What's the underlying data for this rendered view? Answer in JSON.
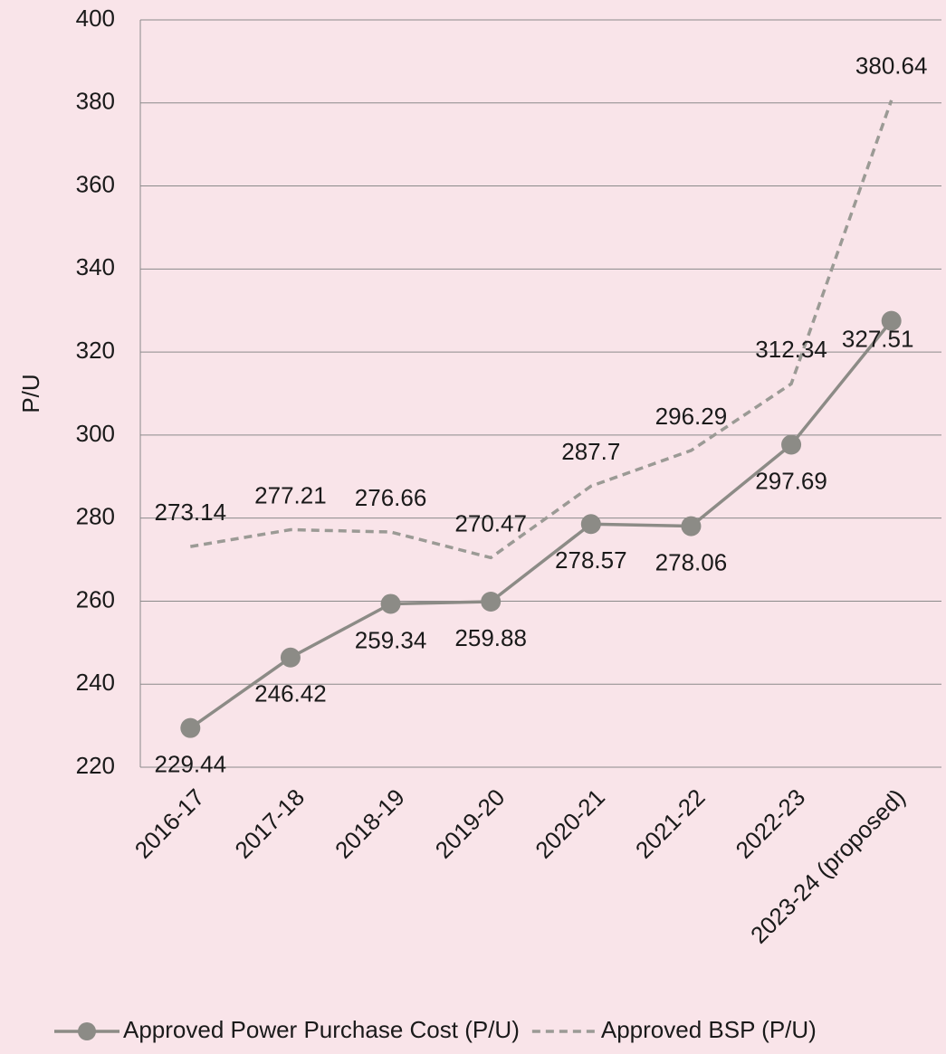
{
  "chart_data": {
    "type": "line",
    "y_label": "P/U",
    "categories": [
      "2016-17",
      "2017-18",
      "2018-19",
      "2019-20",
      "2020-21",
      "2021-22",
      "2022-23",
      "2023-24 (proposed)"
    ],
    "series": [
      {
        "name": "Approved Power Purchase Cost (P/U)",
        "color": "#8c8b86",
        "line_style": "solid",
        "marker": "circle",
        "values": [
          229.44,
          246.42,
          259.34,
          259.88,
          278.57,
          278.06,
          297.69,
          327.51
        ]
      },
      {
        "name": "Approved BSP (P/U)",
        "color": "#9b9a95",
        "line_style": "dashed",
        "marker": "none",
        "values": [
          273.14,
          277.21,
          276.66,
          270.47,
          287.7,
          296.29,
          312.34,
          380.64
        ]
      }
    ],
    "ylim": [
      220,
      400
    ],
    "yticks": [
      220,
      240,
      260,
      280,
      300,
      320,
      340,
      360,
      380,
      400
    ],
    "grid": true,
    "legend": "bottom"
  }
}
